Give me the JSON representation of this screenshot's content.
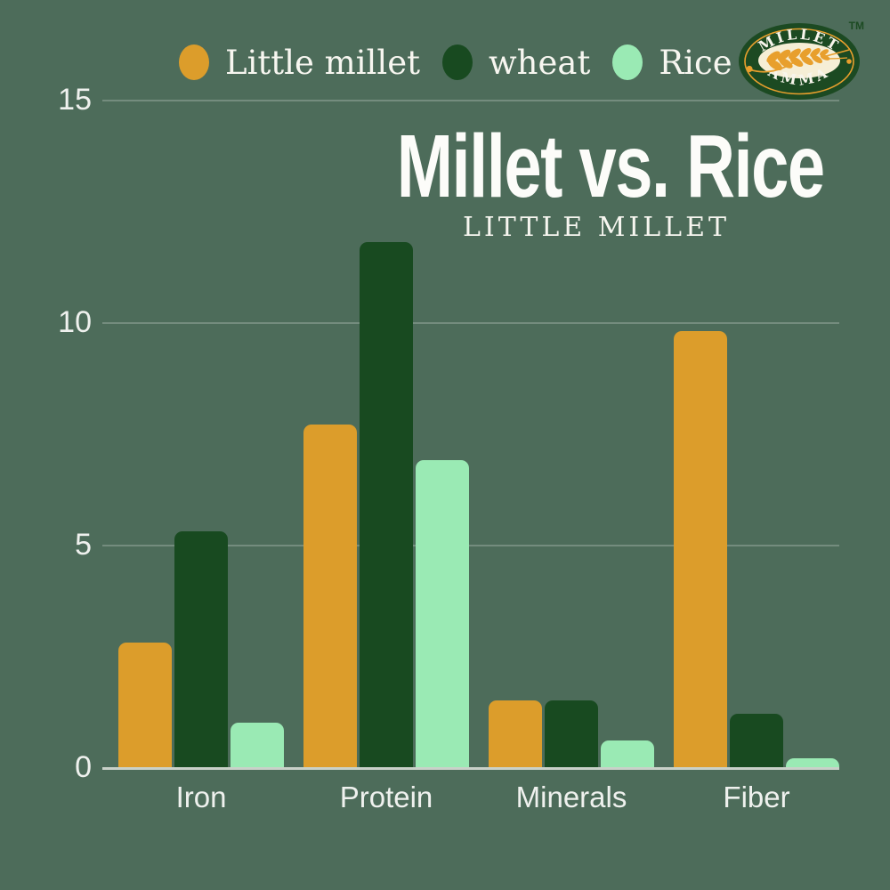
{
  "header": {
    "title": "Millet vs. Rice",
    "subtitle": "LITTLE MILLET"
  },
  "logo": {
    "top_text": "MILLET",
    "bottom_text": "AMMA",
    "trademark": "TM",
    "oval_color": "#1c4a22",
    "ring_color": "#e89f2d",
    "center_color": "#f6eed6",
    "wheat_color": "#e89f2d",
    "text_color": "#f8f5ec"
  },
  "colors": {
    "background": "#4d6c5a",
    "text": "#f7f6f0",
    "gridline": "rgba(255,255,255,0.22)",
    "axis_line": "#c9d1c9"
  },
  "chart_data": {
    "type": "bar",
    "title": "Millet vs. Rice",
    "subtitle": "LITTLE MILLET",
    "categories": [
      "Iron",
      "Protein",
      "Minerals",
      "Fiber"
    ],
    "series": [
      {
        "name": "Little millet",
        "color": "#dc9d2b",
        "values": [
          2.8,
          7.7,
          1.5,
          9.8
        ]
      },
      {
        "name": "wheat",
        "color": "#184a20",
        "values": [
          5.3,
          11.8,
          1.5,
          1.2
        ]
      },
      {
        "name": "Rice",
        "color": "#9aeab4",
        "values": [
          1.0,
          6.9,
          0.6,
          0.2
        ]
      }
    ],
    "xlabel": "",
    "ylabel": "",
    "ylim": [
      0,
      15
    ],
    "yticks": [
      15,
      10,
      5,
      0
    ],
    "grid": "horizontal",
    "legend_position": "top"
  }
}
